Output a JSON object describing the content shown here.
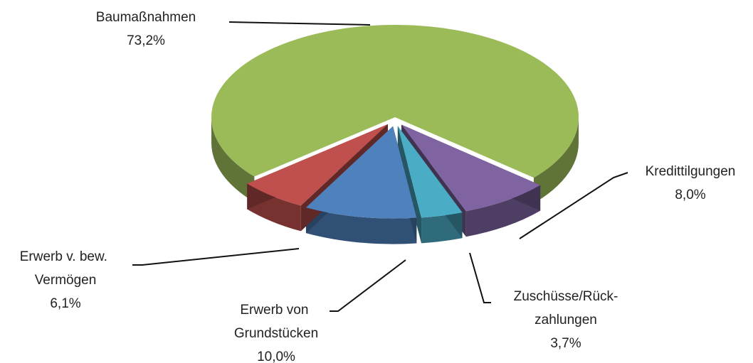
{
  "chart_data": {
    "type": "pie",
    "categories": [
      "Baumaßnahmen",
      "Kredittilgungen",
      "Zuschüsse/Rück-zahlungen",
      "Erwerb von Grundstücken",
      "Erwerb v. bew. Vermögen"
    ],
    "values": [
      73.2,
      8.0,
      3.7,
      10.0,
      6.1
    ],
    "value_labels": [
      "73,2%",
      "8,0%",
      "3,7%",
      "10,0%",
      "6,1%"
    ],
    "colors": [
      "#9bbb59",
      "#8064a2",
      "#4bacc6",
      "#4f81bd",
      "#c0504d"
    ]
  }
}
